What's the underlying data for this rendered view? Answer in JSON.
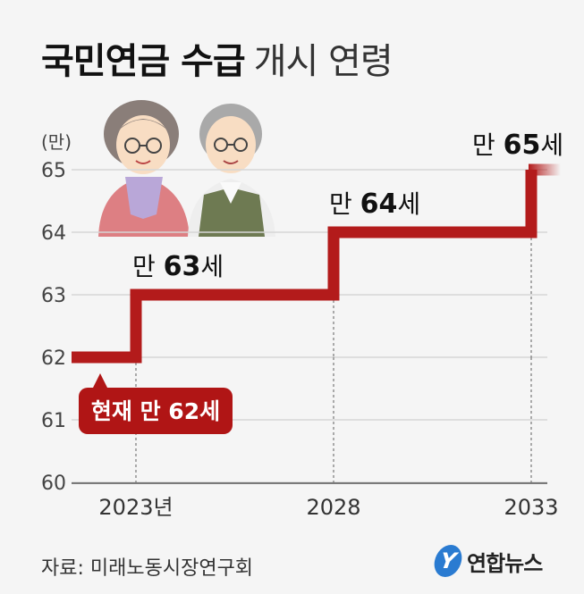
{
  "title": {
    "bold": "국민연금 수급",
    "light": "개시 연령"
  },
  "source": "자료: 미래노동시장연구회",
  "logo": {
    "mark": "Y",
    "text": "연합뉴스"
  },
  "chart_data": {
    "type": "line",
    "ylabel": "(만)",
    "ylim": [
      60,
      65
    ],
    "yticks": [
      "60",
      "61",
      "62",
      "63",
      "64",
      "65"
    ],
    "xticks": [
      "2023년",
      "2028",
      "2033"
    ],
    "x": [
      2022,
      2023,
      2023,
      2028,
      2028,
      2033,
      2033,
      2034
    ],
    "y": [
      62,
      62,
      63,
      63,
      64,
      64,
      65,
      65
    ],
    "labels": [
      {
        "prefix": "만 ",
        "num": "63",
        "suffix": "세"
      },
      {
        "prefix": "만 ",
        "num": "64",
        "suffix": "세"
      },
      {
        "prefix": "만 ",
        "num": "65",
        "suffix": "세"
      }
    ],
    "current_badge": "현재 만 62세",
    "colors": {
      "line": "#b31b1b",
      "badge": "#b01515",
      "grid": "#d6d6d6"
    }
  }
}
